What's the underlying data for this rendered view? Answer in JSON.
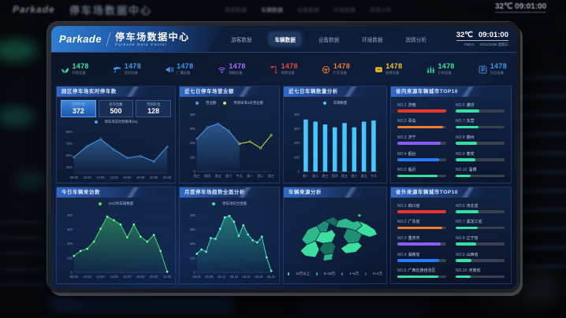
{
  "background": {
    "logo": "Parkade",
    "title": "停车场数据中心",
    "clock": "32℃ 09:01:00",
    "nav": [
      "游客数据",
      "车辆数据",
      "设备数据",
      "环境数据",
      "舆情分析"
    ]
  },
  "header": {
    "logo": "Parkade",
    "title": "停车场数据中心",
    "subtitle": "Parkade Data Center",
    "nav": [
      {
        "label": "游客数据",
        "active": false
      },
      {
        "label": "车辆数据",
        "active": true
      },
      {
        "label": "设备数据",
        "active": false
      },
      {
        "label": "环境数据",
        "active": false
      },
      {
        "label": "舆情分析",
        "active": false
      }
    ],
    "temperature": "32℃",
    "time": "09:01:00",
    "pm_label": "PM2.5",
    "date": "2021/10/06 星期三"
  },
  "stats": [
    {
      "icon": "leaf-icon",
      "key": "leaf",
      "label": "环境设备",
      "value": "1478",
      "color": "#2ee6a8"
    },
    {
      "icon": "camera-icon",
      "key": "camera",
      "label": "监控设备",
      "value": "1478",
      "color": "#3a9af0"
    },
    {
      "icon": "speaker-icon",
      "key": "speaker",
      "label": "广播设备",
      "value": "1478",
      "color": "#3a9af0"
    },
    {
      "icon": "wifi-icon",
      "key": "wifi",
      "label": "网络设备",
      "value": "1478",
      "color": "#a86bff"
    },
    {
      "icon": "street-lamp-icon",
      "key": "lamp",
      "label": "照明设备",
      "value": "1478",
      "color": "#e8483e"
    },
    {
      "icon": "steering-wheel-icon",
      "key": "wheel",
      "label": "行车设备",
      "value": "1478",
      "color": "#f07c2e"
    },
    {
      "icon": "toll-icon",
      "key": "toll",
      "label": "收费设备",
      "value": "1478",
      "color": "#f5c324"
    },
    {
      "icon": "bars-icon",
      "key": "bars",
      "label": "引导设备",
      "value": "1478",
      "color": "#2ee6a8"
    },
    {
      "icon": "parking-icon",
      "key": "parking",
      "label": "车位设备",
      "value": "1478",
      "color": "#3a9af0"
    }
  ],
  "panels": {
    "realtime": {
      "title": "园区停车场实时停车数",
      "boxes": [
        {
          "label": "已停车位",
          "value": "372"
        },
        {
          "label": "总车位数",
          "value": "500"
        },
        {
          "label": "空闲车位",
          "value": "128"
        }
      ],
      "legend": [
        {
          "label": "停车场实时饱和率(%)",
          "color": "#4a9df0"
        }
      ]
    },
    "revenue": {
      "title": "近七日停车场营业额",
      "legend": [
        {
          "label": "营业额",
          "color": "#4a9df0"
        },
        {
          "label": "预测未来3天营业额",
          "color": "#cfe24a"
        }
      ]
    },
    "vehicles": {
      "title": "近七日车辆数量分析",
      "legend": [
        {
          "label": "车辆数量",
          "color": "#45c8ff"
        }
      ]
    },
    "top_in": {
      "title": "省内来源车辆城市TOP10",
      "items": [
        {
          "rank": "NO.1",
          "name": "济南",
          "pct": 100,
          "color": "#e8362e"
        },
        {
          "rank": "NO.2",
          "name": "青岛",
          "pct": 93,
          "color": "#f07c2e"
        },
        {
          "rank": "NO.3",
          "name": "济宁",
          "pct": 88,
          "color": "#8b5cf6"
        },
        {
          "rank": "NO.4",
          "name": "烟台",
          "pct": 86,
          "color": "#2979ff"
        },
        {
          "rank": "NO.5",
          "name": "临沂",
          "pct": 82,
          "color": "#35e0a1"
        },
        {
          "rank": "NO.6",
          "name": "潍坊",
          "pct": 48,
          "color": "#35e0a1"
        },
        {
          "rank": "NO.7",
          "name": "东营",
          "pct": 46,
          "color": "#35e0a1"
        },
        {
          "rank": "NO.8",
          "name": "德州",
          "pct": 43,
          "color": "#35e0a1"
        },
        {
          "rank": "NO.9",
          "name": "泰安",
          "pct": 41,
          "color": "#35e0a1"
        },
        {
          "rank": "NO.10",
          "name": "淄博",
          "pct": 31,
          "color": "#35e0a1"
        }
      ]
    },
    "today": {
      "title": "今日车辆来访数",
      "legend": [
        {
          "label": "24小时车辆数量",
          "color": "#3fe06a"
        }
      ]
    },
    "monthly": {
      "title": "月度停车场趋势全面分析",
      "legend": [
        {
          "label": "停车场综合金额",
          "color": "#35e0b0"
        }
      ]
    },
    "map": {
      "title": "车辆来源分析",
      "legend": [
        {
          "label": "10万以上",
          "color": "#3ddfa0"
        },
        {
          "label": "5~10万",
          "color": "#2db88c"
        },
        {
          "label": "1~5万",
          "color": "#1f8f78"
        },
        {
          "label": "0~1万",
          "color": "#16705f"
        }
      ]
    },
    "top_out": {
      "title": "省外来源车辆城市TOP10",
      "items": [
        {
          "rank": "NO.1",
          "name": "四川省",
          "pct": 100,
          "color": "#e8362e"
        },
        {
          "rank": "NO.2",
          "name": "广东省",
          "pct": 92,
          "color": "#f07c2e"
        },
        {
          "rank": "NO.3",
          "name": "重庆市",
          "pct": 88,
          "color": "#8b5cf6"
        },
        {
          "rank": "NO.4",
          "name": "湖南省",
          "pct": 86,
          "color": "#2979ff"
        },
        {
          "rank": "NO.5",
          "name": "广西壮族自治区",
          "pct": 84,
          "color": "#35e0a1"
        },
        {
          "rank": "NO.6",
          "name": "河北省",
          "pct": 47,
          "color": "#35e0a1"
        },
        {
          "rank": "NO.7",
          "name": "黑龙江省",
          "pct": 45,
          "color": "#35e0a1"
        },
        {
          "rank": "NO.8",
          "name": "辽宁省",
          "pct": 42,
          "color": "#35e0a1"
        },
        {
          "rank": "NO.9",
          "name": "山西省",
          "pct": 32,
          "color": "#35e0a1"
        },
        {
          "rank": "NO.10",
          "name": "河南省",
          "pct": 30,
          "color": "#35e0a1"
        }
      ]
    }
  },
  "chart_data": [
    {
      "id": "saturation",
      "type": "line",
      "title": "园区停车场实时停车数",
      "x": [
        "08:00",
        "10:00",
        "12:00",
        "14:00",
        "16:00",
        "18:00",
        "20:00",
        "22:00"
      ],
      "series": [
        {
          "name": "停车场实时饱和率(%)",
          "color": "#4a9df0",
          "fill": true,
          "values": [
            47,
            66,
            78,
            60,
            46,
            49,
            40,
            65
          ]
        }
      ],
      "ylim": [
        20,
        95
      ],
      "yticks": [
        30,
        50,
        70,
        90
      ],
      "ysuffix": "%"
    },
    {
      "id": "revenue",
      "type": "line",
      "title": "近七日停车场营业额",
      "x": [
        "周三",
        "周四",
        "周五",
        "周六",
        "今天",
        "周一",
        "周二",
        "周三"
      ],
      "series": [
        {
          "name": "营业额",
          "color": "#4a9df0",
          "fill": true,
          "values": [
            230,
            310,
            335,
            285,
            195,
            null,
            null,
            null
          ]
        },
        {
          "name": "预测未来3天营业额",
          "color": "#cfe24a",
          "fill": false,
          "values": [
            null,
            null,
            null,
            null,
            195,
            210,
            165,
            255
          ]
        }
      ],
      "ylim": [
        0,
        430
      ],
      "yticks": [
        0,
        100,
        200,
        300,
        400
      ]
    },
    {
      "id": "vehicles",
      "type": "bar",
      "title": "近七日车辆数量分析",
      "x": [
        "周一",
        "周二",
        "周三",
        "周四",
        "周五",
        "周六",
        "周日",
        "今天"
      ],
      "values": [
        365,
        350,
        330,
        310,
        340,
        310,
        350,
        358
      ],
      "color": "#45c8ff",
      "ylim": [
        0,
        430
      ],
      "yticks": [
        0,
        100,
        200,
        300,
        400
      ]
    },
    {
      "id": "today",
      "type": "area",
      "title": "今日车辆来访数",
      "xticks": [
        "08:00",
        "10:00",
        "12:00",
        "14:00",
        "16:00",
        "18:00",
        "20:00",
        "22:00"
      ],
      "series": [
        {
          "name": "24小时车辆数量",
          "color": "#3fe06a",
          "fill": true,
          "marker": "white",
          "values": [
            115,
            150,
            165,
            215,
            305,
            390,
            365,
            335,
            245,
            335,
            250,
            215,
            262,
            150,
            5
          ]
        }
      ],
      "ylim": [
        0,
        430
      ],
      "yticks": [
        0,
        100,
        200,
        300,
        400
      ]
    },
    {
      "id": "monthly",
      "type": "area",
      "title": "月度停车场趋势全面分析",
      "xticks": [
        "06.01",
        "06.06",
        "06.11",
        "06.16",
        "06.21",
        "06.26",
        "06.31"
      ],
      "series": [
        {
          "name": "停车场综合金额",
          "color": "#35e0b0",
          "fill": true,
          "marker": "white",
          "values": [
            130,
            160,
            145,
            240,
            235,
            305,
            385,
            395,
            355,
            255,
            330,
            265,
            225,
            210,
            250,
            105,
            10
          ]
        }
      ],
      "ylim": [
        0,
        430
      ],
      "yticks": [
        0,
        100,
        200,
        300,
        400
      ]
    }
  ]
}
